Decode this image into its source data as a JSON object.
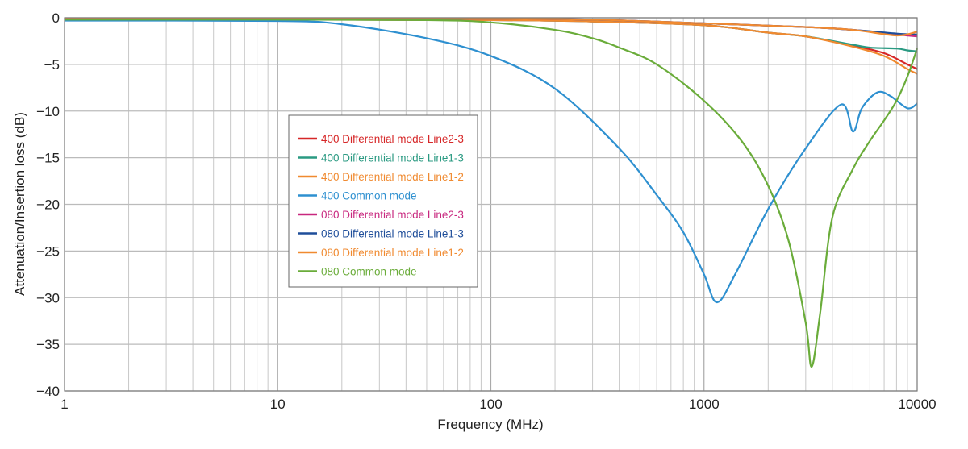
{
  "chart_data": {
    "type": "line",
    "xlabel": "Frequency (MHz)",
    "ylabel": "Attenuation/Insertion loss (dB)",
    "xscale": "log",
    "xlim": [
      1,
      10000
    ],
    "ylim": [
      -40,
      0
    ],
    "xticks": [
      1,
      10,
      100,
      1000,
      10000
    ],
    "xtick_labels": [
      "1",
      "10",
      "100",
      "1000",
      "10000"
    ],
    "yticks": [
      0,
      -5,
      -10,
      -15,
      -20,
      -25,
      -30,
      -35,
      -40
    ],
    "ytick_labels": [
      "0",
      "−5",
      "−10",
      "−15",
      "−20",
      "−25",
      "−30",
      "−35",
      "−40"
    ],
    "grid": true,
    "legend_placement": "center-left",
    "series": [
      {
        "name": "400 Differential mode Line2-3",
        "color": "#d62728",
        "x": [
          1,
          10,
          100,
          300,
          1000,
          2000,
          3000,
          5000,
          7000,
          9000,
          10000
        ],
        "y": [
          -0.2,
          -0.2,
          -0.25,
          -0.4,
          -0.8,
          -1.6,
          -2.0,
          -3.0,
          -3.8,
          -5.0,
          -5.5
        ]
      },
      {
        "name": "400 Differential mode Line1-3",
        "color": "#2a9a82",
        "x": [
          1,
          10,
          100,
          300,
          1000,
          2000,
          3000,
          5000,
          6000,
          8000,
          9000,
          10000
        ],
        "y": [
          -0.2,
          -0.2,
          -0.25,
          -0.4,
          -0.8,
          -1.6,
          -2.0,
          -2.9,
          -3.2,
          -3.3,
          -3.5,
          -3.6
        ]
      },
      {
        "name": "400 Differential mode Line1-2",
        "color": "#f08a30",
        "x": [
          1,
          10,
          100,
          300,
          1000,
          2000,
          3000,
          5000,
          7000,
          9000,
          10000
        ],
        "y": [
          -0.2,
          -0.2,
          -0.25,
          -0.4,
          -0.8,
          -1.6,
          -2.0,
          -3.1,
          -4.1,
          -5.5,
          -6.0
        ]
      },
      {
        "name": "400 Common mode",
        "color": "#2e90d0",
        "x": [
          1,
          10,
          20,
          50,
          100,
          200,
          400,
          600,
          800,
          1000,
          1150,
          1400,
          2000,
          3000,
          4400,
          5000,
          5500,
          6500,
          7500,
          9000,
          10000
        ],
        "y": [
          -0.3,
          -0.35,
          -0.7,
          -2.2,
          -4.1,
          -7.6,
          -14,
          -19,
          -23,
          -27.5,
          -30.5,
          -27.5,
          -20.5,
          -14,
          -9.3,
          -12.2,
          -9.7,
          -8,
          -8.4,
          -9.7,
          -9.2
        ]
      },
      {
        "name": "080 Differential mode Line2-3",
        "color": "#c8287f",
        "x": [
          1,
          10,
          100,
          300,
          1000,
          3000,
          5000,
          8000,
          10000
        ],
        "y": [
          -0.1,
          -0.1,
          -0.1,
          -0.2,
          -0.6,
          -1.0,
          -1.3,
          -1.8,
          -2.0
        ]
      },
      {
        "name": "080 Differential mode Line1-3",
        "color": "#1f4e9a",
        "x": [
          1,
          10,
          100,
          300,
          1000,
          3000,
          5000,
          8000,
          10000
        ],
        "y": [
          -0.1,
          -0.1,
          -0.1,
          -0.2,
          -0.6,
          -1.0,
          -1.3,
          -1.7,
          -1.8
        ]
      },
      {
        "name": "080 Differential mode Line1-2",
        "color": "#f08a30",
        "x": [
          1,
          10,
          100,
          300,
          1000,
          3000,
          5000,
          8000,
          10000
        ],
        "y": [
          -0.1,
          -0.1,
          -0.1,
          -0.2,
          -0.6,
          -1.0,
          -1.3,
          -1.9,
          -1.5
        ]
      },
      {
        "name": "080 Common mode",
        "color": "#6aac3a",
        "x": [
          1,
          10,
          50,
          100,
          200,
          300,
          400,
          600,
          1000,
          1500,
          2000,
          2500,
          3000,
          3200,
          3500,
          4000,
          5000,
          6000,
          7000,
          8000,
          9000,
          10000
        ],
        "y": [
          -0.2,
          -0.2,
          -0.25,
          -0.5,
          -1.3,
          -2.2,
          -3.2,
          -5,
          -8.9,
          -13.2,
          -18,
          -24,
          -32.7,
          -37.4,
          -31.8,
          -21.4,
          -16.2,
          -13.2,
          -11,
          -8.9,
          -6.3,
          -3.3
        ]
      }
    ]
  }
}
